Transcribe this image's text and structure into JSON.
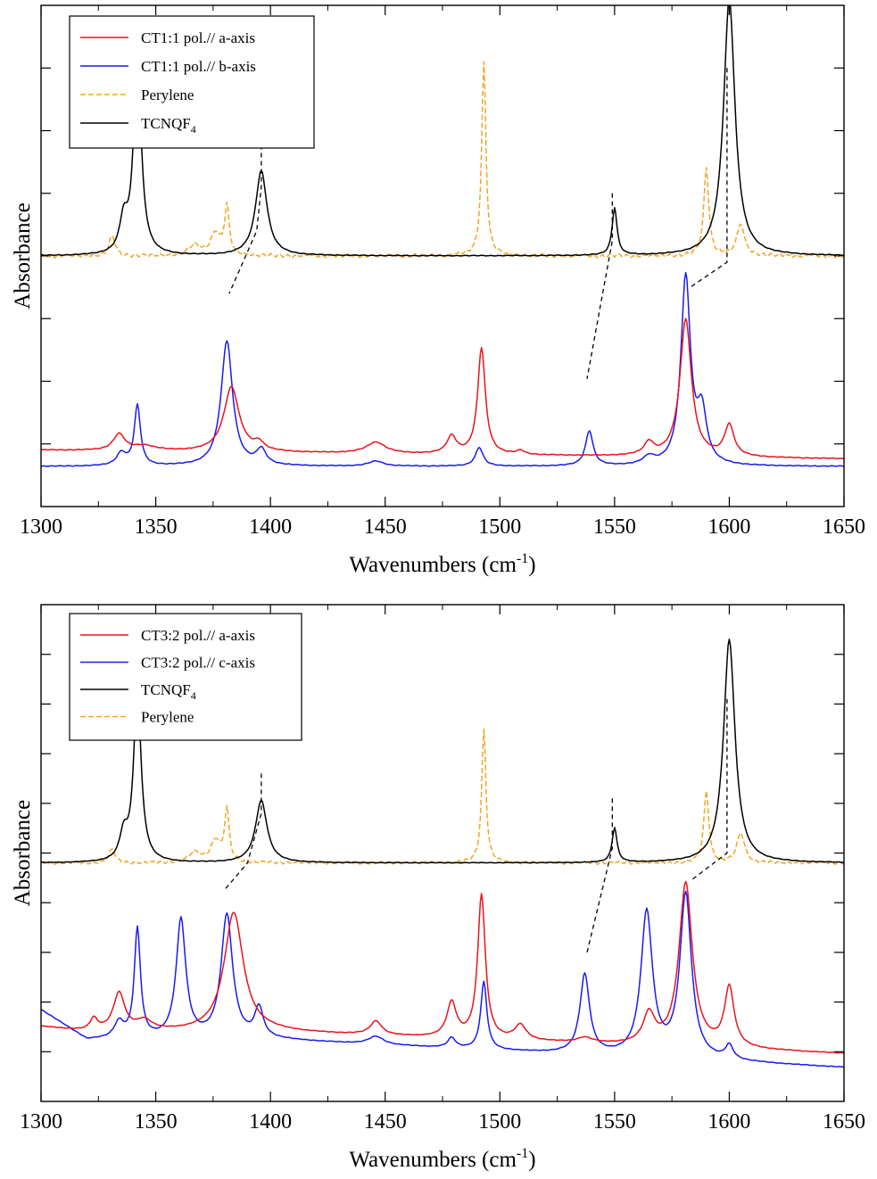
{
  "chart_data": [
    {
      "type": "line",
      "xlabel": "Wavenumbers (cm",
      "xlabel_sup": "-1",
      "xlabel_tail": ")",
      "ylabel": "Absorbance",
      "xlim": [
        1300,
        1650
      ],
      "ylim": [
        0,
        4
      ],
      "x_ticks": [
        1300,
        1350,
        1400,
        1450,
        1500,
        1550,
        1600,
        1650
      ],
      "y_ticks": [
        0.5,
        1,
        1.5,
        2,
        2.5,
        3,
        3.5
      ],
      "tick_labels": [
        "1300",
        "1350",
        "1400",
        "1450",
        "1500",
        "1550",
        "1600",
        "1650"
      ],
      "legend_position": "top-left",
      "legend": [
        {
          "label": "CT1:1 pol.// a-axis",
          "label_sub": "",
          "series": 0
        },
        {
          "label": "CT1:1 pol.// b-axis",
          "label_sub": "",
          "series": 1
        },
        {
          "label": "Perylene",
          "label_sub": "",
          "series": 2
        },
        {
          "label": "TCNQF",
          "label_sub": "4",
          "series": 3
        }
      ],
      "series": [
        {
          "name": "CT1:1 pol.// a-axis",
          "color": "#e8141c",
          "style": "solid",
          "baseline": 0.4,
          "tail": [
            [
              1300,
              0.05
            ],
            [
              1650,
              -0.02
            ]
          ],
          "peaks": [
            [
              1334,
              0.13,
              3
            ],
            [
              1345,
              0.04,
              6
            ],
            [
              1383,
              0.52,
              4
            ],
            [
              1395,
              0.06,
              2.5
            ],
            [
              1446,
              0.09,
              5
            ],
            [
              1479,
              0.14,
              2.5
            ],
            [
              1492,
              0.85,
              2
            ],
            [
              1509,
              0.03,
              2
            ],
            [
              1565,
              0.1,
              2.5
            ],
            [
              1581,
              1.1,
              3
            ],
            [
              1600,
              0.25,
              2.5
            ]
          ]
        },
        {
          "name": "CT1:1 pol.// b-axis",
          "color": "#1b1bf0",
          "style": "solid",
          "baseline": 0.32,
          "tail": [
            [
              1300,
              0.0
            ],
            [
              1650,
              0.0
            ]
          ],
          "peaks": [
            [
              1335,
              0.1,
              2.5
            ],
            [
              1342,
              0.48,
              1.6
            ],
            [
              1381,
              1.0,
              3
            ],
            [
              1396,
              0.12,
              2.5
            ],
            [
              1446,
              0.04,
              4
            ],
            [
              1491,
              0.15,
              2
            ],
            [
              1539,
              0.28,
              2
            ],
            [
              1565,
              0.06,
              3
            ],
            [
              1581,
              1.5,
              2.5
            ],
            [
              1588,
              0.4,
              2.5
            ]
          ]
        },
        {
          "name": "Perylene",
          "color": "#f3a524",
          "style": "dashed",
          "baseline": 2.0,
          "tail": [
            [
              1300,
              0.0
            ],
            [
              1650,
              0.0
            ]
          ],
          "peaks": [
            [
              1331,
              0.16,
              1.5
            ],
            [
              1367,
              0.08,
              3
            ],
            [
              1376,
              0.18,
              2.5
            ],
            [
              1381,
              0.38,
              1.2
            ],
            [
              1493,
              1.55,
              1.1
            ],
            [
              1590,
              0.7,
              1.3
            ],
            [
              1605,
              0.25,
              2
            ]
          ]
        },
        {
          "name": "TCNQF4",
          "color": "#000000",
          "style": "solid",
          "baseline": 2.0,
          "tail": [
            [
              1300,
              0.0
            ],
            [
              1650,
              0.0
            ]
          ],
          "peaks": [
            [
              1336,
              0.25,
              2
            ],
            [
              1342,
              1.6,
              2
            ],
            [
              1396,
              0.68,
              3
            ],
            [
              1550,
              0.38,
              1.3
            ],
            [
              1600,
              2.05,
              3
            ]
          ]
        }
      ],
      "guides": [
        [
          [
            1396,
            2.95
          ],
          [
            1396,
            2.55
          ],
          [
            1394,
            2.2
          ],
          [
            1382,
            1.7
          ]
        ],
        [
          [
            1549,
            2.5
          ],
          [
            1549,
            2.12
          ],
          [
            1538,
            1.02
          ]
        ],
        [
          [
            1599,
            3.5
          ],
          [
            1599,
            1.95
          ],
          [
            1583,
            1.75
          ]
        ]
      ]
    },
    {
      "type": "line",
      "xlabel": "Wavenumbers (cm",
      "xlabel_sup": "-1",
      "xlabel_tail": ")",
      "ylabel": "Absorbance",
      "xlim": [
        1300,
        1650
      ],
      "ylim": [
        0,
        5
      ],
      "x_ticks": [
        1300,
        1350,
        1400,
        1450,
        1500,
        1550,
        1600,
        1650
      ],
      "y_ticks": [
        0.5,
        1,
        1.5,
        2,
        2.5,
        3,
        3.5,
        4,
        4.5
      ],
      "tick_labels": [
        "1300",
        "1350",
        "1400",
        "1450",
        "1500",
        "1550",
        "1600",
        "1650"
      ],
      "legend_position": "top-left",
      "legend": [
        {
          "label": "CT3:2 pol.// a-axis",
          "label_sub": "",
          "series": 0
        },
        {
          "label": "CT3:2 pol.// c-axis",
          "label_sub": "",
          "series": 1
        },
        {
          "label": "TCNQF",
          "label_sub": "4",
          "series": 3
        },
        {
          "label": "Perylene",
          "label_sub": "",
          "series": 2
        }
      ],
      "series": [
        {
          "name": "CT3:2 pol.// a-axis",
          "color": "#e8141c",
          "style": "solid",
          "baseline": 0.7,
          "tail": [
            [
              1300,
              0.05
            ],
            [
              1320,
              0.0
            ],
            [
              1400,
              0.0
            ],
            [
              1650,
              -0.22
            ]
          ],
          "peaks": [
            [
              1323,
              0.12,
              2
            ],
            [
              1334,
              0.38,
              3
            ],
            [
              1345,
              0.1,
              4
            ],
            [
              1384,
              1.2,
              5
            ],
            [
              1446,
              0.14,
              3
            ],
            [
              1479,
              0.35,
              2.5
            ],
            [
              1492,
              1.45,
              2
            ],
            [
              1509,
              0.15,
              3
            ],
            [
              1537,
              0.05,
              4
            ],
            [
              1565,
              0.3,
              3
            ],
            [
              1581,
              1.65,
              3.5
            ],
            [
              1600,
              0.6,
              2.5
            ]
          ]
        },
        {
          "name": "CT3:2 pol.// c-axis",
          "color": "#1b1bf0",
          "style": "solid",
          "baseline": 0.62,
          "tail": [
            [
              1300,
              0.3
            ],
            [
              1320,
              0.0
            ],
            [
              1400,
              0.0
            ],
            [
              1650,
              -0.28
            ]
          ],
          "peaks": [
            [
              1334,
              0.16,
              2.5
            ],
            [
              1342,
              1.1,
              1.6
            ],
            [
              1361,
              1.2,
              2.5
            ],
            [
              1381,
              1.25,
              3
            ],
            [
              1395,
              0.3,
              2.2
            ],
            [
              1446,
              0.08,
              4
            ],
            [
              1479,
              0.1,
              2
            ],
            [
              1493,
              0.68,
              1.6
            ],
            [
              1537,
              0.8,
              2.5
            ],
            [
              1564,
              1.45,
              3
            ],
            [
              1581,
              1.65,
              3
            ],
            [
              1600,
              0.14,
              2
            ]
          ]
        },
        {
          "name": "Perylene",
          "color": "#f3a524",
          "style": "dashed",
          "baseline": 2.4,
          "tail": [
            [
              1300,
              0.0
            ],
            [
              1650,
              0.0
            ]
          ],
          "peaks": [
            [
              1331,
              0.14,
              1.5
            ],
            [
              1367,
              0.1,
              3
            ],
            [
              1376,
              0.22,
              2.5
            ],
            [
              1381,
              0.52,
              1.2
            ],
            [
              1493,
              1.35,
              1.1
            ],
            [
              1590,
              0.72,
              1.3
            ],
            [
              1605,
              0.3,
              2
            ]
          ]
        },
        {
          "name": "TCNQF4",
          "color": "#000000",
          "style": "solid",
          "baseline": 2.4,
          "tail": [
            [
              1300,
              0.0
            ],
            [
              1650,
              0.0
            ]
          ],
          "peaks": [
            [
              1336,
              0.25,
              2
            ],
            [
              1342,
              1.7,
              2
            ],
            [
              1396,
              0.63,
              3
            ],
            [
              1550,
              0.35,
              1.3
            ],
            [
              1600,
              2.25,
              3
            ]
          ]
        }
      ],
      "guides": [
        [
          [
            1396,
            3.3
          ],
          [
            1396,
            2.9
          ],
          [
            1390,
            2.4
          ],
          [
            1380,
            2.13
          ]
        ],
        [
          [
            1549,
            3.05
          ],
          [
            1549,
            2.55
          ],
          [
            1538,
            1.5
          ]
        ],
        [
          [
            1599,
            4.05
          ],
          [
            1599,
            2.5
          ],
          [
            1583,
            2.22
          ]
        ]
      ]
    }
  ]
}
